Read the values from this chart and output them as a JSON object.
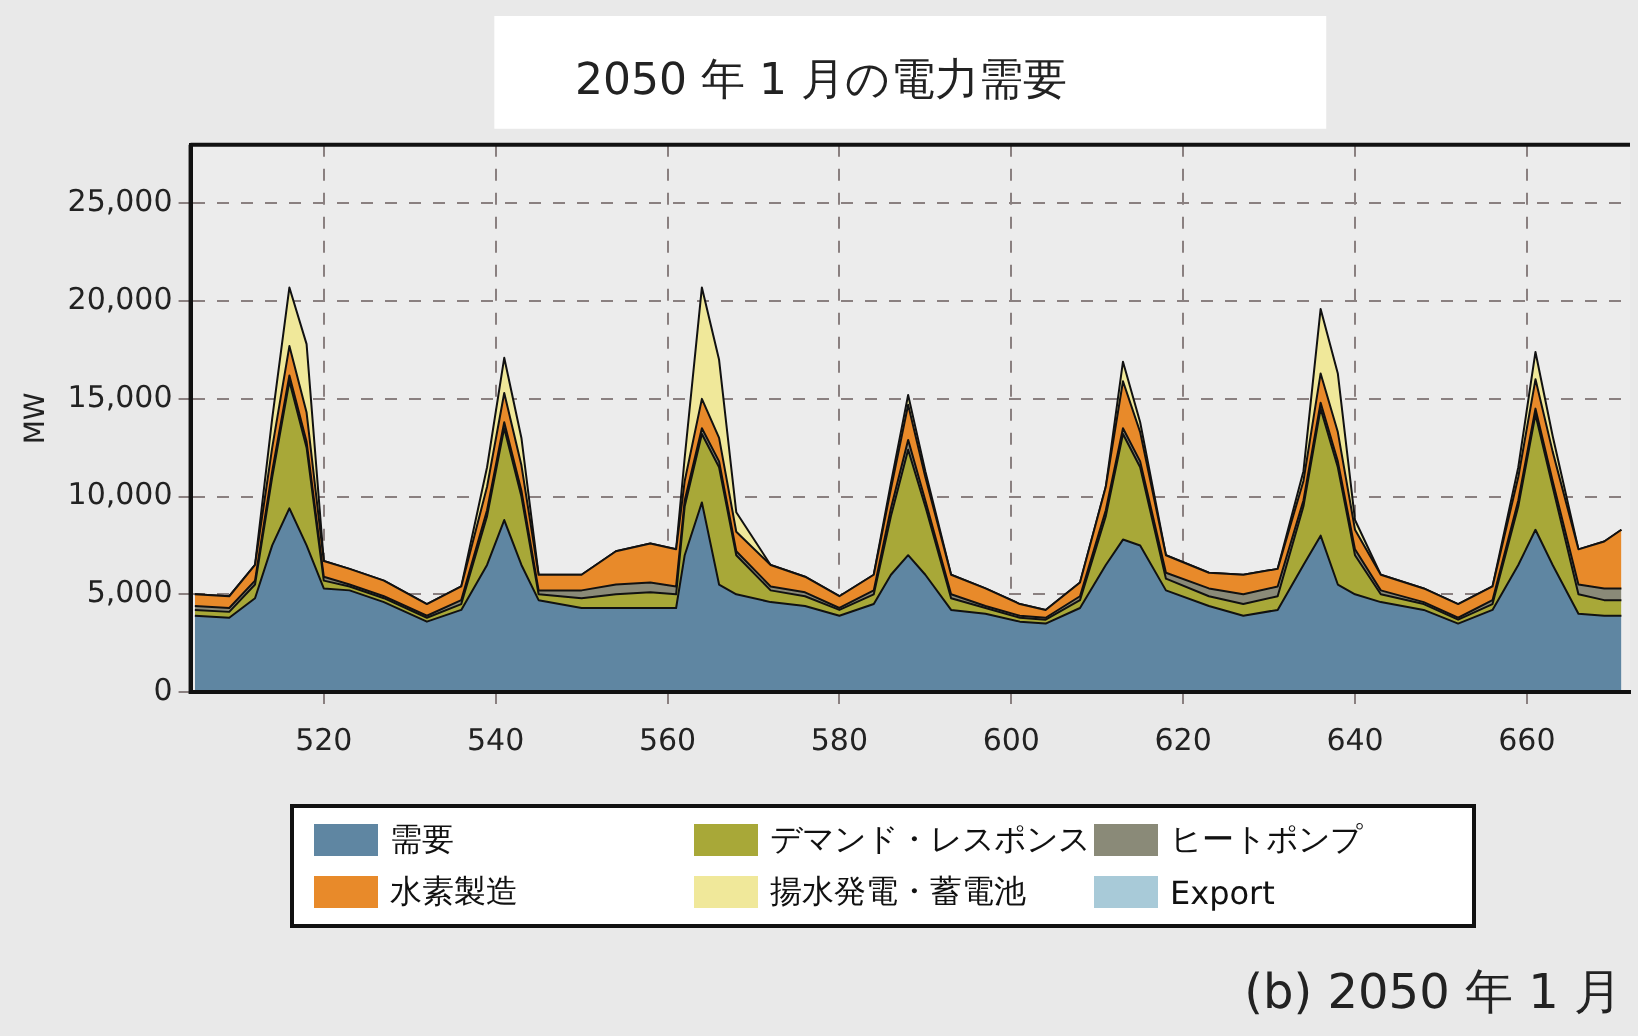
{
  "chart_data": {
    "type": "area",
    "stacked": true,
    "title": "2050 年 1 月の電力需要",
    "ylabel": "MW",
    "x": [
      505,
      509,
      512,
      514,
      516,
      518,
      520,
      523,
      527,
      532,
      536,
      539,
      541,
      543,
      545,
      550,
      554,
      558,
      561,
      562,
      564,
      566,
      568,
      572,
      576,
      580,
      584,
      586,
      588,
      590,
      593,
      597,
      601,
      604,
      608,
      611,
      613,
      615,
      618,
      623,
      627,
      631,
      634,
      636,
      638,
      640,
      643,
      648,
      652,
      656,
      659,
      661,
      663,
      666,
      669,
      671
    ],
    "xlim": [
      504.5,
      672
    ],
    "xticks": [
      520,
      540,
      560,
      580,
      600,
      620,
      640,
      660
    ],
    "ylim": [
      0,
      28000
    ],
    "yticks": [
      {
        "value": 0,
        "label": "0"
      },
      {
        "value": 5000,
        "label": "5,000"
      },
      {
        "value": 10000,
        "label": "10,000"
      },
      {
        "value": 15000,
        "label": "15,000"
      },
      {
        "value": 20000,
        "label": "20,000"
      },
      {
        "value": 25000,
        "label": "25,000"
      }
    ],
    "grid": true,
    "legend": "bottom",
    "series": [
      {
        "name": "需要",
        "color": "#5f86a2",
        "values": [
          3900,
          3800,
          4800,
          7500,
          9400,
          7500,
          5300,
          5200,
          4600,
          3600,
          4200,
          6500,
          8800,
          6500,
          4700,
          4300,
          4300,
          4300,
          4300,
          7000,
          9700,
          5500,
          5000,
          4600,
          4400,
          3900,
          4500,
          6000,
          7000,
          6000,
          4200,
          4000,
          3600,
          3500,
          4300,
          6500,
          7800,
          7500,
          5200,
          4400,
          3900,
          4200,
          6500,
          8000,
          5500,
          5000,
          4600,
          4200,
          3500,
          4200,
          6500,
          8300,
          6500,
          4000,
          3900,
          3900
        ]
      },
      {
        "name": "デマンド・レスポンス",
        "color": "#a8a838",
        "values": [
          300,
          300,
          700,
          3500,
          6500,
          5000,
          400,
          200,
          200,
          200,
          300,
          2500,
          4700,
          3500,
          300,
          500,
          700,
          800,
          700,
          2500,
          3500,
          6000,
          2000,
          600,
          500,
          300,
          500,
          3000,
          5400,
          3500,
          600,
          300,
          200,
          200,
          400,
          2500,
          5400,
          4000,
          600,
          500,
          600,
          700,
          3000,
          6500,
          6000,
          2000,
          400,
          300,
          200,
          300,
          3000,
          5900,
          4000,
          1000,
          800,
          800
        ]
      },
      {
        "name": "ヒートポンプ",
        "color": "#8a8a78",
        "values": [
          200,
          200,
          200,
          300,
          300,
          300,
          200,
          100,
          100,
          100,
          200,
          300,
          300,
          300,
          200,
          400,
          500,
          500,
          400,
          300,
          300,
          300,
          200,
          200,
          200,
          100,
          200,
          400,
          500,
          300,
          200,
          100,
          100,
          100,
          200,
          300,
          300,
          300,
          300,
          400,
          500,
          500,
          300,
          300,
          300,
          300,
          200,
          100,
          100,
          200,
          300,
          300,
          300,
          500,
          600,
          600
        ]
      },
      {
        "name": "水素製造",
        "color": "#e88a2a",
        "values": [
          600,
          600,
          800,
          1200,
          1500,
          1500,
          800,
          800,
          800,
          600,
          700,
          1200,
          1500,
          1300,
          800,
          800,
          1700,
          2000,
          1900,
          1000,
          1500,
          1200,
          1000,
          1100,
          800,
          600,
          800,
          1000,
          1800,
          1200,
          1000,
          900,
          600,
          400,
          700,
          1200,
          2400,
          1500,
          900,
          800,
          1000,
          900,
          1000,
          1500,
          1500,
          1000,
          800,
          700,
          700,
          700,
          1200,
          1500,
          1500,
          1800,
          2400,
          3000
        ]
      },
      {
        "name": "揚水発電・蓄電池",
        "color": "#f0e89a",
        "values": [
          0,
          0,
          0,
          1500,
          3000,
          3500,
          0,
          0,
          0,
          0,
          0,
          1000,
          1800,
          1400,
          0,
          0,
          0,
          0,
          0,
          1200,
          5700,
          4000,
          1000,
          0,
          0,
          0,
          0,
          300,
          500,
          300,
          0,
          0,
          0,
          0,
          0,
          0,
          1000,
          500,
          0,
          0,
          0,
          0,
          500,
          3300,
          3000,
          500,
          0,
          0,
          0,
          0,
          500,
          1400,
          800,
          0,
          0,
          0
        ]
      },
      {
        "name": "Export",
        "color": "#a8cad8",
        "values": [
          null,
          null,
          null,
          null,
          null,
          null,
          null,
          null,
          null,
          null,
          null,
          null,
          null,
          null,
          null,
          null,
          null,
          null,
          null,
          null,
          null,
          null,
          null,
          null,
          null,
          null,
          null,
          null,
          null,
          null,
          null,
          null,
          null,
          null,
          null,
          null,
          null,
          null,
          null,
          null,
          null,
          null,
          null,
          null,
          null,
          null,
          null,
          null,
          null,
          null,
          null,
          null,
          null,
          null,
          null,
          null
        ]
      }
    ],
    "annotations": [
      "(b) 2050 年 1 月"
    ]
  }
}
